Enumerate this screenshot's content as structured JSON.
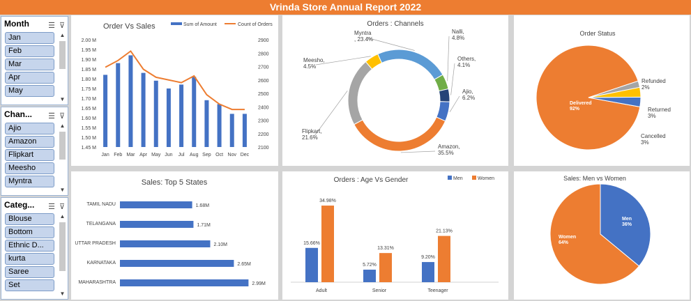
{
  "title": "Vrinda Store Annual Report 2022",
  "colors": {
    "blue": "#4472c4",
    "orange": "#ed7d31",
    "title_bg": "#ed7d31"
  },
  "slicers": [
    {
      "header": "Month",
      "items": [
        "Jan",
        "Feb",
        "Mar",
        "Apr",
        "May"
      ]
    },
    {
      "header": "Chan...",
      "items": [
        "Ajio",
        "Amazon",
        "Flipkart",
        "Meesho",
        "Myntra"
      ]
    },
    {
      "header": "Categ...",
      "items": [
        "Blouse",
        "Bottom",
        "Ethnic D...",
        "kurta",
        "Saree",
        "Set"
      ]
    }
  ],
  "chart_data": [
    {
      "type": "bar",
      "title": "Order Vs Sales",
      "categories": [
        "Jan",
        "Feb",
        "Mar",
        "Apr",
        "May",
        "Jun",
        "Jul",
        "Aug",
        "Sep",
        "Oct",
        "Nov",
        "Dec"
      ],
      "series": [
        {
          "name": "Sum of Amount",
          "type": "bar",
          "axis": "left",
          "values": [
            1.82,
            1.88,
            1.92,
            1.83,
            1.79,
            1.75,
            1.77,
            1.81,
            1.69,
            1.67,
            1.62,
            1.62
          ]
        },
        {
          "name": "Count of Orders",
          "type": "line",
          "axis": "right",
          "values": [
            2695,
            2745,
            2815,
            2680,
            2620,
            2600,
            2580,
            2630,
            2490,
            2420,
            2380,
            2380
          ]
        }
      ],
      "left_ticks": [
        "2.00 M",
        "1.95 M",
        "1.90 M",
        "1.85 M",
        "1.80 M",
        "1.75 M",
        "1.70 M",
        "1.65 M",
        "1.60 M",
        "1.55 M",
        "1.50 M",
        "1.45 M"
      ],
      "right_ticks": [
        "2900",
        "2800",
        "2700",
        "2600",
        "2500",
        "2400",
        "2300",
        "2200",
        "2100"
      ],
      "ylim_left": [
        1.45,
        2.0
      ],
      "ylim_right": [
        2100,
        2900
      ]
    },
    {
      "type": "pie",
      "variant": "doughnut",
      "title": "Orders : Channels",
      "labels": [
        "Amazon",
        "Flipkart",
        "Meesho",
        "Myntra",
        "Nalli",
        "Others",
        "Ajio"
      ],
      "values": [
        35.5,
        21.6,
        4.5,
        23.4,
        4.8,
        4.1,
        6.2
      ],
      "display": [
        "Amazon,\n35.5%",
        "Flipkart,\n21.6%",
        "Meesho,\n4.5%",
        "Myntra\n, 23.4%",
        "Nalli,\n4.8%",
        "Others,\n4.1%",
        "Ajio,\n6.2%"
      ],
      "colors": [
        "#ed7d31",
        "#a5a5a5",
        "#ffc000",
        "#5b9bd5",
        "#70ad47",
        "#264478",
        "#4472c4"
      ]
    },
    {
      "type": "pie",
      "title": "Order Status",
      "labels": [
        "Delivered",
        "Refunded",
        "Returned",
        "Cancelled"
      ],
      "values": [
        92,
        2,
        3,
        3
      ],
      "display": [
        "Delivered\n92%",
        "Refunded\n2%",
        "Returned\n3%",
        "Cancelled\n3%"
      ],
      "colors": [
        "#ed7d31",
        "#a5a5a5",
        "#ffc000",
        "#4472c4"
      ]
    },
    {
      "type": "bar",
      "orientation": "horizontal",
      "title": "Sales: Top 5 States",
      "categories": [
        "TAMIL NADU",
        "TELANGANA",
        "UTTAR PRADESH",
        "KARNATAKA",
        "MAHARASHTRA"
      ],
      "values": [
        1.68,
        1.71,
        2.1,
        2.65,
        2.99
      ],
      "value_labels": [
        "1.68M",
        "1.71M",
        "2.10M",
        "2.65M",
        "2.99M"
      ]
    },
    {
      "type": "bar",
      "title": "Orders : Age Vs Gender",
      "categories": [
        "Adult",
        "Senior",
        "Teenager"
      ],
      "series": [
        {
          "name": "Men",
          "values": [
            15.66,
            5.72,
            9.2
          ],
          "labels": [
            "15.66%",
            "5.72%",
            "9.20%"
          ]
        },
        {
          "name": "Women",
          "values": [
            34.98,
            13.31,
            21.13
          ],
          "labels": [
            "34.98%",
            "13.31%",
            "21.13%"
          ]
        }
      ]
    },
    {
      "type": "pie",
      "title": "Sales: Men vs Women",
      "labels": [
        "Men",
        "Women"
      ],
      "values": [
        36,
        64
      ],
      "display": [
        "Men\n36%",
        "Women\n64%"
      ],
      "colors": [
        "#4472c4",
        "#ed7d31"
      ]
    }
  ]
}
